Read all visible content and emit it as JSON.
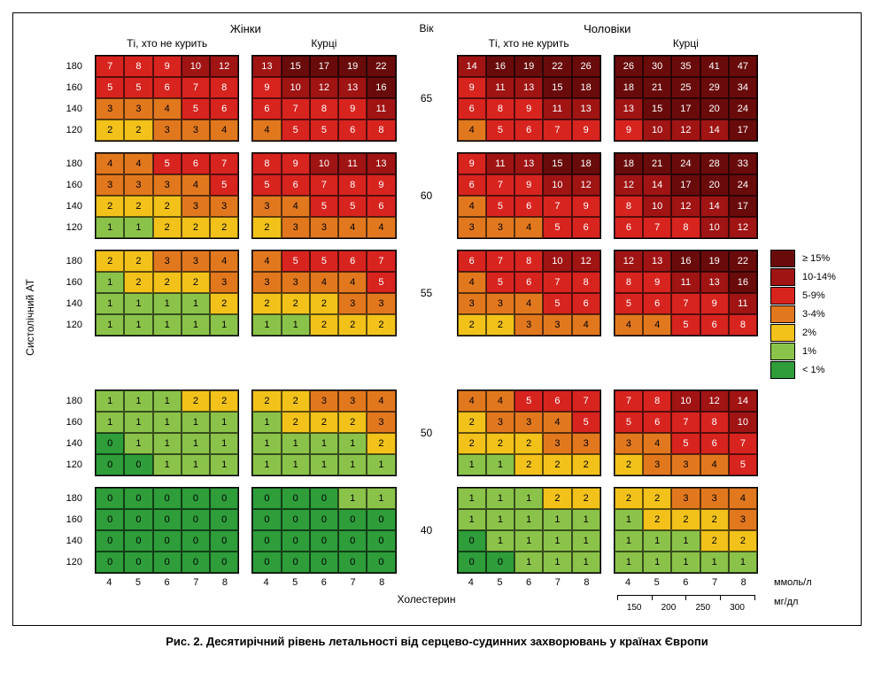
{
  "caption": "Рис. 2. Десятирічний рівень летальності від серцево-судинних захворювань у країнах Європи",
  "y_axis_title": "Систолічний АТ",
  "x_axis_title": "Холестерин",
  "age_title": "Вік",
  "gender_headers": {
    "women": "Жінки",
    "men": "Чоловіки"
  },
  "smoking_headers": {
    "non": "Ті, хто не курить",
    "smk": "Курці"
  },
  "unit_primary": "ммоль/л",
  "unit_secondary": "мг/дл",
  "bp_rows": [
    180,
    160,
    140,
    120
  ],
  "chol_cols": [
    4,
    5,
    6,
    7,
    8
  ],
  "mg_ticks": [
    150,
    200,
    250,
    300
  ],
  "ages": [
    65,
    60,
    55,
    50,
    40
  ],
  "color_scale": {
    "bins": [
      {
        "label": "≥ 15%",
        "min": 15,
        "max": 9999,
        "bg": "#6a0b0b",
        "fg": "#ffffff"
      },
      {
        "label": "10-14%",
        "min": 10,
        "max": 14,
        "bg": "#a01414",
        "fg": "#ffffff"
      },
      {
        "label": "5-9%",
        "min": 5,
        "max": 9,
        "bg": "#d8241f",
        "fg": "#ffffff"
      },
      {
        "label": "3-4%",
        "min": 3,
        "max": 4,
        "bg": "#e2781e",
        "fg": "#000000"
      },
      {
        "label": "2%",
        "min": 2,
        "max": 2,
        "bg": "#f2c21a",
        "fg": "#000000"
      },
      {
        "label": "1%",
        "min": 1,
        "max": 1,
        "bg": "#8bc34a",
        "fg": "#000000"
      },
      {
        "label": "< 1%",
        "min": 0,
        "max": 0,
        "bg": "#2e9d3a",
        "fg": "#000000"
      }
    ]
  },
  "panels": {
    "women_non": {
      "65": [
        [
          7,
          8,
          9,
          10,
          12
        ],
        [
          5,
          5,
          6,
          7,
          8
        ],
        [
          3,
          3,
          4,
          5,
          6
        ],
        [
          2,
          2,
          3,
          3,
          4
        ]
      ],
      "60": [
        [
          4,
          4,
          5,
          6,
          7
        ],
        [
          3,
          3,
          3,
          4,
          5
        ],
        [
          2,
          2,
          2,
          3,
          3
        ],
        [
          1,
          1,
          2,
          2,
          2
        ]
      ],
      "55": [
        [
          2,
          2,
          3,
          3,
          4
        ],
        [
          1,
          2,
          2,
          2,
          3
        ],
        [
          1,
          1,
          1,
          1,
          2
        ],
        [
          1,
          1,
          1,
          1,
          1
        ]
      ],
      "50": [
        [
          1,
          1,
          1,
          2,
          2
        ],
        [
          1,
          1,
          1,
          1,
          1
        ],
        [
          0,
          1,
          1,
          1,
          1
        ],
        [
          0,
          0,
          1,
          1,
          1
        ]
      ],
      "40": [
        [
          0,
          0,
          0,
          0,
          0
        ],
        [
          0,
          0,
          0,
          0,
          0
        ],
        [
          0,
          0,
          0,
          0,
          0
        ],
        [
          0,
          0,
          0,
          0,
          0
        ]
      ]
    },
    "women_smk": {
      "65": [
        [
          13,
          15,
          17,
          19,
          22
        ],
        [
          9,
          10,
          12,
          13,
          16
        ],
        [
          6,
          7,
          8,
          9,
          11
        ],
        [
          4,
          5,
          5,
          6,
          8
        ]
      ],
      "60": [
        [
          8,
          9,
          10,
          11,
          13
        ],
        [
          5,
          6,
          7,
          8,
          9
        ],
        [
          3,
          4,
          5,
          5,
          6
        ],
        [
          2,
          3,
          3,
          4,
          4
        ]
      ],
      "55": [
        [
          4,
          5,
          5,
          6,
          7
        ],
        [
          3,
          3,
          4,
          4,
          5
        ],
        [
          2,
          2,
          2,
          3,
          3
        ],
        [
          1,
          1,
          2,
          2,
          2
        ]
      ],
      "50": [
        [
          2,
          2,
          3,
          3,
          4
        ],
        [
          1,
          2,
          2,
          2,
          3
        ],
        [
          1,
          1,
          1,
          1,
          2
        ],
        [
          1,
          1,
          1,
          1,
          1
        ]
      ],
      "40": [
        [
          0,
          0,
          0,
          1,
          1
        ],
        [
          0,
          0,
          0,
          0,
          0
        ],
        [
          0,
          0,
          0,
          0,
          0
        ],
        [
          0,
          0,
          0,
          0,
          0
        ]
      ]
    },
    "men_non": {
      "65": [
        [
          14,
          16,
          19,
          22,
          26
        ],
        [
          9,
          11,
          13,
          15,
          18
        ],
        [
          6,
          8,
          9,
          11,
          13
        ],
        [
          4,
          5,
          6,
          7,
          9
        ]
      ],
      "60": [
        [
          9,
          11,
          13,
          15,
          18
        ],
        [
          6,
          7,
          9,
          10,
          12
        ],
        [
          4,
          5,
          6,
          7,
          9
        ],
        [
          3,
          3,
          4,
          5,
          6
        ]
      ],
      "55": [
        [
          6,
          7,
          8,
          10,
          12
        ],
        [
          4,
          5,
          6,
          7,
          8
        ],
        [
          3,
          3,
          4,
          5,
          6
        ],
        [
          2,
          2,
          3,
          3,
          4
        ]
      ],
      "50": [
        [
          4,
          4,
          5,
          6,
          7
        ],
        [
          2,
          3,
          3,
          4,
          5
        ],
        [
          2,
          2,
          2,
          3,
          3
        ],
        [
          1,
          1,
          2,
          2,
          2
        ]
      ],
      "40": [
        [
          1,
          1,
          1,
          2,
          2
        ],
        [
          1,
          1,
          1,
          1,
          1
        ],
        [
          0,
          1,
          1,
          1,
          1
        ],
        [
          0,
          0,
          1,
          1,
          1
        ]
      ]
    },
    "men_smk": {
      "65": [
        [
          26,
          30,
          35,
          41,
          47
        ],
        [
          18,
          21,
          25,
          29,
          34
        ],
        [
          13,
          15,
          17,
          20,
          24
        ],
        [
          9,
          10,
          12,
          14,
          17
        ]
      ],
      "60": [
        [
          18,
          21,
          24,
          28,
          33
        ],
        [
          12,
          14,
          17,
          20,
          24
        ],
        [
          8,
          10,
          12,
          14,
          17
        ],
        [
          6,
          7,
          8,
          10,
          12
        ]
      ],
      "55": [
        [
          12,
          13,
          16,
          19,
          22
        ],
        [
          8,
          9,
          11,
          13,
          16
        ],
        [
          5,
          6,
          7,
          9,
          11
        ],
        [
          4,
          4,
          5,
          6,
          8
        ]
      ],
      "50": [
        [
          7,
          8,
          10,
          12,
          14
        ],
        [
          5,
          6,
          7,
          8,
          10
        ],
        [
          3,
          4,
          5,
          6,
          7
        ],
        [
          2,
          3,
          3,
          4,
          5
        ]
      ],
      "40": [
        [
          2,
          2,
          3,
          3,
          4
        ],
        [
          1,
          2,
          2,
          2,
          3
        ],
        [
          1,
          1,
          1,
          2,
          2
        ],
        [
          1,
          1,
          1,
          1,
          1
        ]
      ]
    }
  }
}
